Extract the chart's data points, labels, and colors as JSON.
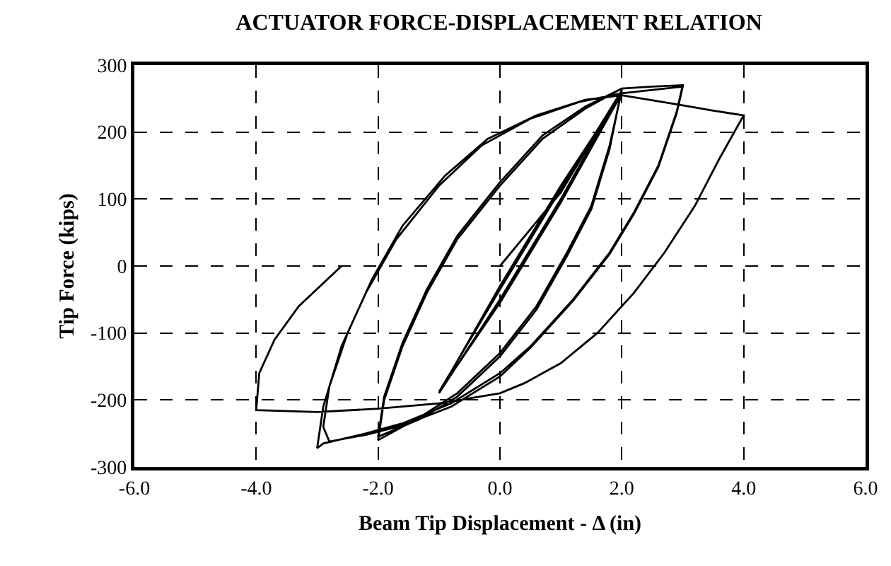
{
  "chart_data": {
    "type": "line",
    "title": "ACTUATOR FORCE-DISPLACEMENT RELATION",
    "xlabel": "Beam Tip Displacement - Δ (in)",
    "ylabel": "Tip Force (kips)",
    "x": [
      0,
      1,
      2,
      1,
      0,
      -1,
      0,
      1,
      2,
      1,
      0,
      -1,
      0,
      1,
      2,
      1.8,
      1.5,
      1.1,
      0.6,
      0,
      -0.7,
      -1.3,
      -2,
      -1.9,
      -1.6,
      -1.2,
      -0.7,
      0,
      0.7,
      1.4,
      2,
      1.8,
      1.5,
      1.1,
      0.6,
      0,
      -0.7,
      -1.3,
      -2,
      -1.9,
      -1.6,
      -1.2,
      -0.7,
      0,
      0.7,
      1.4,
      2,
      2.5,
      3,
      2.9,
      2.6,
      2.2,
      1.8,
      1.2,
      0.5,
      0,
      -0.8,
      -1.6,
      -2.2,
      -2.9,
      -3,
      -2.9,
      -2.6,
      -2.2,
      -1.7,
      -1,
      -0.3,
      0.5,
      1.3,
      2,
      3,
      2.9,
      2.6,
      2.2,
      1.8,
      1.2,
      0.5,
      0,
      -0.8,
      -1.6,
      -2.2,
      -2.8,
      -2.9,
      -2.8,
      -2.5,
      -2.1,
      -1.6,
      -0.9,
      -0.2,
      0.6,
      1.4,
      2,
      3,
      3.5,
      4,
      3.6,
      3.2,
      2.7,
      2.2,
      1.6,
      1,
      0.4,
      0,
      -1,
      -2,
      -3,
      -4,
      -3.95,
      -3.7,
      -3.3,
      -2.6
    ],
    "values": [
      0,
      110,
      262,
      100,
      -50,
      -190,
      -30,
      120,
      258,
      95,
      -55,
      -188,
      -35,
      115,
      262,
      180,
      90,
      20,
      -60,
      -130,
      -190,
      -225,
      -260,
      -200,
      -120,
      -40,
      40,
      120,
      190,
      235,
      265,
      175,
      85,
      15,
      -65,
      -135,
      -195,
      -228,
      -255,
      -195,
      -115,
      -35,
      45,
      125,
      195,
      238,
      265,
      268,
      270,
      230,
      150,
      80,
      20,
      -50,
      -120,
      -160,
      -205,
      -235,
      -250,
      -265,
      -272,
      -210,
      -120,
      -40,
      40,
      120,
      180,
      220,
      245,
      258,
      268,
      228,
      148,
      78,
      18,
      -52,
      -122,
      -165,
      -210,
      -238,
      -252,
      -262,
      -240,
      -180,
      -100,
      -20,
      60,
      135,
      190,
      225,
      248,
      255,
      240,
      232,
      225,
      160,
      90,
      20,
      -40,
      -100,
      -145,
      -175,
      -190,
      -205,
      -213,
      -218,
      -215,
      -160,
      -110,
      -60,
      0
    ],
    "color": "#000000",
    "line_style": "solid",
    "marker": "none",
    "xlim": [
      -6,
      6
    ],
    "xticks": [
      {
        "value": -6,
        "label": "-6.0"
      },
      {
        "value": -4,
        "label": "-4.0"
      },
      {
        "value": -2,
        "label": "-2.0"
      },
      {
        "value": 0,
        "label": "0.0"
      },
      {
        "value": 2,
        "label": "2.0"
      },
      {
        "value": 4,
        "label": "4.0"
      },
      {
        "value": 6,
        "label": "6.0"
      }
    ],
    "ylim": [
      -300,
      300
    ],
    "yticks": [
      -300,
      -200,
      -100,
      0,
      100,
      200,
      300
    ],
    "grid": true
  }
}
